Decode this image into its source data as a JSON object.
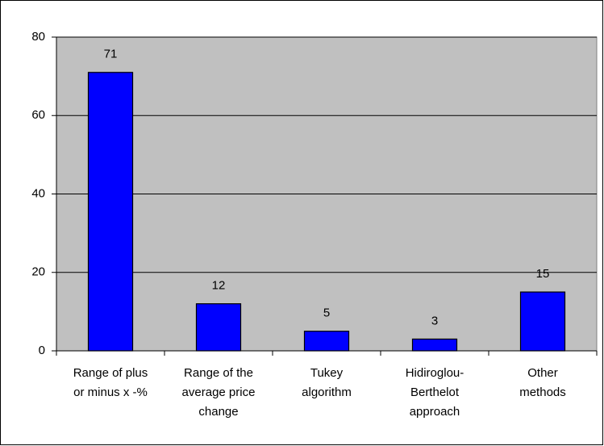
{
  "chart_data": {
    "type": "bar",
    "categories": [
      "Range of plus or minus x -%",
      "Range of the average price change",
      "Tukey algorithm",
      "Hidiroglou-Berthelot approach",
      "Other methods"
    ],
    "values": [
      71,
      12,
      5,
      3,
      15
    ],
    "color": "#0000ff",
    "ylim": [
      0,
      80
    ],
    "yticks": [
      0,
      20,
      40,
      60,
      80
    ],
    "grid": true
  }
}
